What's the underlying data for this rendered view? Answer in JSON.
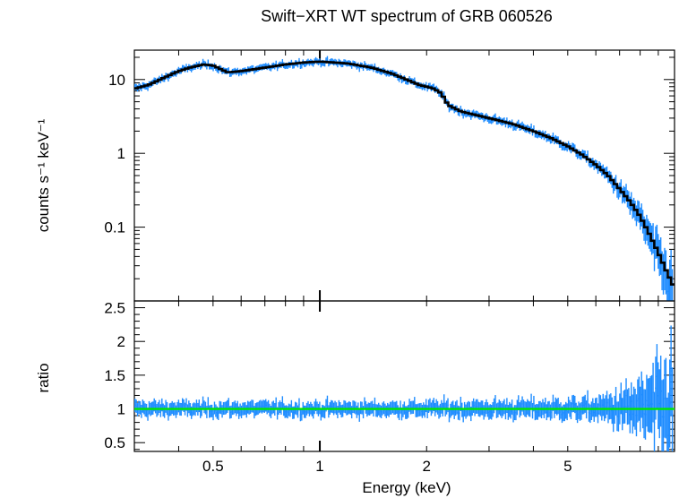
{
  "chart_data": [
    {
      "type": "line",
      "panel": "spectrum",
      "title": "Swift−XRT WT spectrum of GRB 060526",
      "ylabel": "counts s⁻¹ keV⁻¹",
      "xlabel": "",
      "x_scale": "log",
      "y_scale": "log",
      "xlim": [
        0.3,
        10
      ],
      "ylim": [
        0.01,
        25
      ],
      "y_ticks": [
        10,
        1,
        0.1
      ],
      "y_tick_labels": [
        "10",
        "1",
        "0.1"
      ],
      "model": {
        "x": [
          0.3,
          0.33,
          0.37,
          0.4,
          0.43,
          0.47,
          0.5,
          0.55,
          0.6,
          0.7,
          0.8,
          0.9,
          1.0,
          1.1,
          1.2,
          1.4,
          1.6,
          1.8,
          1.9,
          2.0,
          2.1,
          2.2,
          2.3,
          2.5,
          3.0,
          3.5,
          4.0,
          4.5,
          5.0,
          5.5,
          6.0,
          6.5,
          7.0,
          7.5,
          8.0,
          8.5,
          9.0,
          9.5,
          10.0
        ],
        "y": [
          7.5,
          8.5,
          11,
          13,
          14.5,
          16,
          15.5,
          12.5,
          13,
          14.5,
          16,
          17,
          17.5,
          17,
          16.5,
          14.5,
          12,
          9.5,
          8.5,
          8,
          7.5,
          6.5,
          4.5,
          3.7,
          3.0,
          2.5,
          2.0,
          1.6,
          1.25,
          0.95,
          0.7,
          0.5,
          0.33,
          0.22,
          0.14,
          0.08,
          0.045,
          0.025,
          0.015
        ]
      },
      "series_colors": {
        "data": "#1e8cff",
        "model": "#000000"
      }
    },
    {
      "type": "scatter",
      "panel": "ratio",
      "xlabel": "Energy (keV)",
      "ylabel": "ratio",
      "x_scale": "log",
      "xlim": [
        0.3,
        10
      ],
      "ylim": [
        0.37,
        2.6
      ],
      "x_ticks": [
        0.5,
        1,
        2,
        5
      ],
      "x_tick_labels": [
        "0.5",
        "1",
        "2",
        "5"
      ],
      "y_ticks": [
        0.5,
        1,
        1.5,
        2,
        2.5
      ],
      "y_tick_labels": [
        "0.5",
        "1",
        "1.5",
        "2",
        "2.5"
      ],
      "reference_line": 1,
      "series_colors": {
        "data": "#1e8cff",
        "reference": "#00e600"
      }
    }
  ]
}
